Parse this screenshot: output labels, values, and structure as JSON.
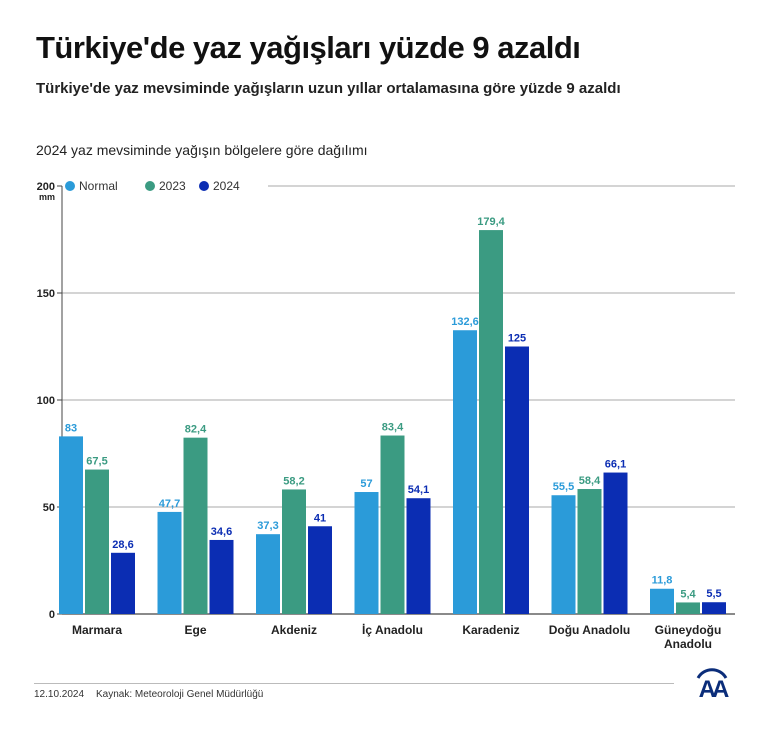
{
  "title": "Türkiye'de yaz yağışları yüzde 9 azaldı",
  "subtitle": "Türkiye'de yaz mevsiminde yağışların uzun yıllar ortalamasına göre yüzde 9 azaldı",
  "footer": {
    "date": "12.10.2024",
    "source": "Kaynak: Meteoroloji Genel Müdürlüğü",
    "logo_text": "AA"
  },
  "chart_data": {
    "type": "bar",
    "title": "2024 yaz mevsiminde yağışın bölgelere göre dağılımı",
    "ylabel": "mm",
    "ylim": [
      0,
      200
    ],
    "yticks": [
      "0",
      "50",
      "100",
      "150",
      "200"
    ],
    "grid": true,
    "legend": "top-left",
    "categories": [
      "Marmara",
      "Ege",
      "Akdeniz",
      "İç Anadolu",
      "Karadeniz",
      "Doğu Anadolu",
      "Güneydoğu Anadolu"
    ],
    "series": [
      {
        "name": "Normal",
        "color": "#2b9bd9",
        "values": [
          83,
          47.7,
          37.3,
          57,
          132.6,
          55.5,
          11.8
        ],
        "labels": [
          "83",
          "47,7",
          "37,3",
          "57",
          "132,6",
          "55,5",
          "11,8"
        ]
      },
      {
        "name": "2023",
        "color": "#3b9b82",
        "values": [
          67.5,
          82.4,
          58.2,
          83.4,
          179.4,
          58.4,
          5.4
        ],
        "labels": [
          "67,5",
          "82,4",
          "58,2",
          "83,4",
          "179,4",
          "58,4",
          "5,4"
        ]
      },
      {
        "name": "2024",
        "color": "#0b2db3",
        "values": [
          28.6,
          34.6,
          41,
          54.1,
          125,
          66.1,
          5.5
        ],
        "labels": [
          "28,6",
          "34,6",
          "41",
          "54,1",
          "125",
          "66,1",
          "5,5"
        ]
      }
    ]
  }
}
